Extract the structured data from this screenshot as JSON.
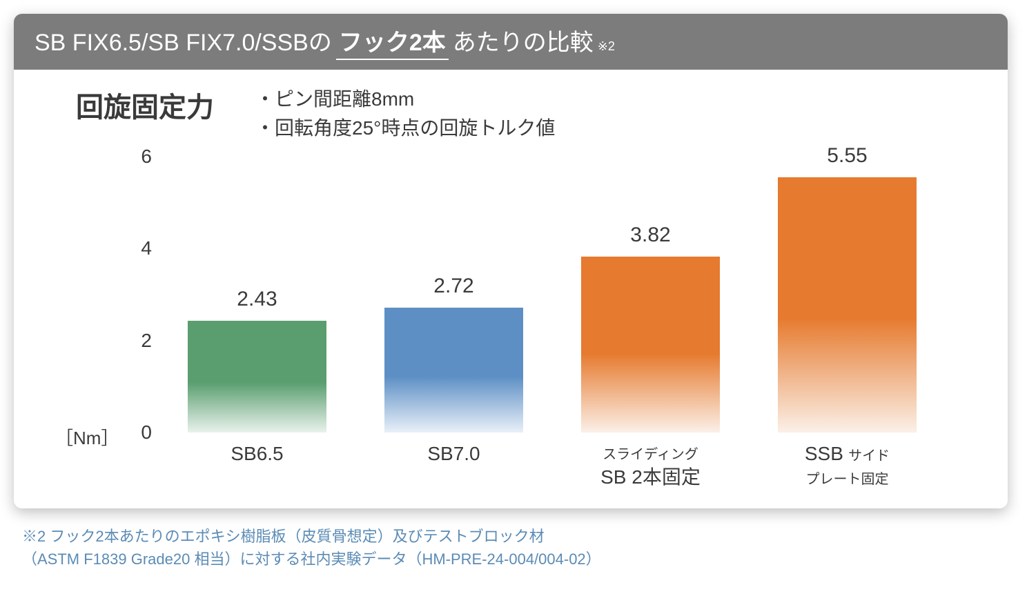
{
  "header": {
    "prefix": "SB FIX6.5/SB FIX7.0/SSBの",
    "emphasis": "フック2本",
    "suffix": "あたりの比較",
    "note_mark": "※2"
  },
  "chart": {
    "type": "bar",
    "title": "回旋固定力",
    "conditions": [
      "・ピン間距離8mm",
      "・回転角度25°時点の回旋トルク値"
    ],
    "y_unit": "［Nm］",
    "ymax": 6,
    "yticks": [
      0,
      2,
      4,
      6
    ],
    "tick_fontsize": 28,
    "value_fontsize": 30,
    "label_fontsize": 26,
    "background_color": "#ffffff",
    "bars": [
      {
        "value": 2.43,
        "value_label": "2.43",
        "label_main": "SB6.5",
        "label_sub": "",
        "color_top": "#5a9e6f",
        "color_bottom": "#e9f2ec"
      },
      {
        "value": 2.72,
        "value_label": "2.72",
        "label_main": "SB7.0",
        "label_sub": "",
        "color_top": "#5d8fc5",
        "color_bottom": "#e9f0f8"
      },
      {
        "value": 3.82,
        "value_label": "3.82",
        "label_main": "SB 2本固定",
        "label_sub": "スライディング",
        "color_top": "#e67a2e",
        "color_bottom": "#fbf0e8"
      },
      {
        "value": 5.55,
        "value_label": "5.55",
        "label_main": "SSB",
        "label_sub": "サイド\nプレート固定",
        "color_top": "#e67a2e",
        "color_bottom": "#fbf0e8"
      }
    ]
  },
  "footnote": {
    "line1": "※2 フック2本あたりのエポキシ樹脂板（皮質骨想定）及びテストブロック材",
    "line2": "（ASTM F1839 Grade20 相当）に対する社内実験データ（HM-PRE-24-004/004-02）"
  }
}
